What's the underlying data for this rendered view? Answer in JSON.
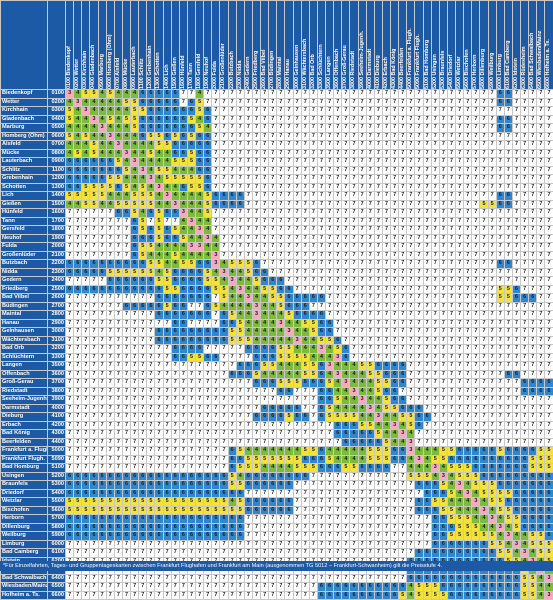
{
  "footnote": "*Für Einzelfahrten, Tages- und Gruppentageskarten zwischen Frankfurt Flughafen und Frankfurt am Main (ausgenommen TG 5012 – Frankfurt-Schwanheim) gilt die Preisstufe 4.",
  "colors": {
    "header": "#1d5aa6",
    "level_1": "#e8413c",
    "level_2": "#f4a6a0",
    "level_3": "#f7a9c0",
    "level_4": "#7dbb3b",
    "level_5": "#f3e23a",
    "level_6": "#2f86d1",
    "level_7": "#ffffff"
  },
  "columns": [
    {
      "code": "0100",
      "name": "Biedenkopf"
    },
    {
      "code": "0200",
      "name": "Wetter"
    },
    {
      "code": "0300",
      "name": "Kirchhain"
    },
    {
      "code": "0400",
      "name": "Gladenbach"
    },
    {
      "code": "0500",
      "name": "Marburg"
    },
    {
      "code": "0600",
      "name": "Homberg (Ohm)"
    },
    {
      "code": "0700",
      "name": "Alsfeld"
    },
    {
      "code": "0800",
      "name": "Mücke"
    },
    {
      "code": "0900",
      "name": "Lauterbach"
    },
    {
      "code": "1100",
      "name": "Schlitz"
    },
    {
      "code": "1200",
      "name": "Grebenhain"
    },
    {
      "code": "1300",
      "name": "Schotten"
    },
    {
      "code": "1400",
      "name": "Lich"
    },
    {
      "code": "1500",
      "name": "Gießen"
    },
    {
      "code": "1600",
      "name": "Hünfeld"
    },
    {
      "code": "1700",
      "name": "Tann"
    },
    {
      "code": "1800",
      "name": "Gersfeld"
    },
    {
      "code": "1900",
      "name": "Neuhof"
    },
    {
      "code": "2000",
      "name": "Fulda"
    },
    {
      "code": "2100",
      "name": "Großenlüder"
    },
    {
      "code": "2200",
      "name": "Butzbach"
    },
    {
      "code": "2300",
      "name": "Nidda"
    },
    {
      "code": "2400",
      "name": "Gedern"
    },
    {
      "code": "2500",
      "name": "Friedberg"
    },
    {
      "code": "2600",
      "name": "Bad Vilbel"
    },
    {
      "code": "2700",
      "name": "Büdingen"
    },
    {
      "code": "2800",
      "name": "Maintal"
    },
    {
      "code": "2900",
      "name": "Hanau"
    },
    {
      "code": "3000",
      "name": "Gelnhausen"
    },
    {
      "code": "3100",
      "name": "Wächtersbach"
    },
    {
      "code": "3200",
      "name": "Bad Orb"
    },
    {
      "code": "3300",
      "name": "Schlüchtern"
    },
    {
      "code": "3500",
      "name": "Langen"
    },
    {
      "code": "3600",
      "name": "Offenbach"
    },
    {
      "code": "3700",
      "name": "Groß-Gerau"
    },
    {
      "code": "3800",
      "name": "Riedstadt"
    },
    {
      "code": "3900",
      "name": "Seeheim-Jugenh."
    },
    {
      "code": "4000",
      "name": "Darmstadt"
    },
    {
      "code": "4100",
      "name": "Dieburg"
    },
    {
      "code": "4200",
      "name": "Erbach"
    },
    {
      "code": "4300",
      "name": "Bad König"
    },
    {
      "code": "4400",
      "name": "Beerfelden"
    },
    {
      "code": "5000",
      "name": "Frankfurt a. Flugh."
    },
    {
      "code": "5090",
      "name": "Frankfurt Flugh."
    },
    {
      "code": "5100",
      "name": "Bad Homburg"
    },
    {
      "code": "5200",
      "name": "Usingen"
    },
    {
      "code": "5300",
      "name": "Braunfels"
    },
    {
      "code": "5400",
      "name": "Driedorf"
    },
    {
      "code": "5500",
      "name": "Wetzlar"
    },
    {
      "code": "5600",
      "name": "Bischofen"
    },
    {
      "code": "5700",
      "name": "Herborn"
    },
    {
      "code": "5800",
      "name": "Dillenburg"
    },
    {
      "code": "5900",
      "name": "Weilburg"
    },
    {
      "code": "6000",
      "name": "Limburg"
    },
    {
      "code": "6100",
      "name": "Bad Camberg"
    },
    {
      "code": "6200",
      "name": "Idstein"
    },
    {
      "code": "6300",
      "name": "Rüdesheim"
    },
    {
      "code": "6400",
      "name": "Bad Schwalbach"
    },
    {
      "code": "6500",
      "name": "Wiesbaden/Mainz"
    },
    {
      "code": "6600",
      "name": "Hofheim a. Ts."
    }
  ],
  "rows": [
    {
      "name": "Biedenkopf",
      "code": "0100",
      "cells": "3455454446666677477777777777777777777777777777777777766777777"
    },
    {
      "name": "Wetter",
      "code": "0200",
      "cells": "4344444556666676577777777777777777777777777777777777766777777"
    },
    {
      "name": "Kirchhain",
      "code": "0300",
      "cells": "5434444455666666567777777777777777777777777777777777777777777"
    },
    {
      "name": "Gladenbach",
      "code": "0400",
      "cells": "5443454556666665467777777777777777777777777777777777766777777"
    },
    {
      "name": "Marburg",
      "code": "0500",
      "cells": "4444344456666666547777777777777777777777777777777777766777777"
    },
    {
      "name": "Homberg (Ohm)",
      "code": "0600",
      "cells": "5454434446556565667777777777777777777777777777777777777777777"
    },
    {
      "name": "Alsfeld",
      "code": "0700",
      "cells": "4445443444455666667777777777777777777777777777777777777777777"
    },
    {
      "name": "Mücke",
      "code": "0800",
      "cells": "4545444344544665667777777777777777777777777777777777777777777"
    },
    {
      "name": "Lauterbach",
      "code": "0900",
      "cells": "6666665434444555667777777777777777777777777777777777777777777"
    },
    {
      "name": "Schlitz",
      "code": "1100",
      "cells": "6666666543455444667777777777777777777777777777777777777777777"
    },
    {
      "name": "Grebenhain",
      "code": "1200",
      "cells": "6666655444345555567777777777777777777777777777777777777777777"
    },
    {
      "name": "Schotten",
      "code": "1300",
      "cells": "6655556545434465567777777777777777777777777777777777777777777"
    },
    {
      "name": "Lich",
      "code": "1400",
      "cells": "5555544455543444456666777777777777777777777777777777766777777"
    },
    {
      "name": "Gießen",
      "code": "1500",
      "cells": "4455445555544344456666777777777777777777777777777775566777777"
    },
    {
      "name": "Hünfeld",
      "code": "1600",
      "cells": "7777776654656634457777777777777777777777777777777777777777777"
    },
    {
      "name": "Tann",
      "code": "1700",
      "cells": "7777777765757743447777777777777777777777777777777777777777777"
    },
    {
      "name": "Gersfeld",
      "code": "1800",
      "cells": "7777777765656544347777777777777777777777777777777777777777777"
    },
    {
      "name": "Neuhof",
      "code": "1900",
      "cells": "7777777766656654434777777777777777777777777777777777777777777"
    },
    {
      "name": "Fulda",
      "code": "2000",
      "cells": "7777777765544443344777777777777777777777777777777777777777777"
    },
    {
      "name": "Großenlüder",
      "code": "2100",
      "cells": "7777777765444544443777777777777777777777777777777777777777777"
    },
    {
      "name": "Butzbach",
      "code": "2200",
      "cells": "6666666666554455663455567777777777777777777777777777766777777"
    },
    {
      "name": "Nidda",
      "code": "2300",
      "cells": "6666655555545666654344566777777777777777777777777777777777777"
    },
    {
      "name": "Gedern",
      "code": "2400",
      "cells": "7777766666655666655434456667777777777777777777777777777777777"
    },
    {
      "name": "Friedberg",
      "code": "2500",
      "cells": "6666666666665566665543445566777777777777777777777777755677777"
    },
    {
      "name": "Bad Vilbel",
      "code": "2600",
      "cells": "7777777777766666667544344556666677777777777777777777755666777"
    },
    {
      "name": "Büdingen",
      "code": "2700",
      "cells": "7777777666665667765444434456667777777777777777777777777777777"
    },
    {
      "name": "Maintal",
      "code": "2800",
      "cells": "7777777777766666667654434445666677777777777777777777777777777"
    },
    {
      "name": "Hanau",
      "code": "2900",
      "cells": "7777777777777667777665444434455667777777777777777777777777777"
    },
    {
      "name": "Gelnhausen",
      "code": "3000",
      "cells": "7777777777766666666655444443445667777777777777777777777777777"
    },
    {
      "name": "Wächtersbach",
      "code": "3100",
      "cells": "7777777777766666666655544444344556777777777777777777777777777"
    },
    {
      "name": "Bad Orb",
      "code": "3200",
      "cells": "7777777777777666677777666655444345677777777777777777777777777"
    },
    {
      "name": "Schlüchtern",
      "code": "3300",
      "cells": "7777777777777665566777766655554443677777777777777777777777777"
    },
    {
      "name": "Langen",
      "code": "3500",
      "cells": "7777777777777777777776665544455634445566667777777777777777777"
    },
    {
      "name": "Offenbach",
      "code": "3600",
      "cells": "7777777777777777777766654444455643444556667777777777776677777"
    },
    {
      "name": "Groß-Gerau",
      "code": "3700",
      "cells": "7777777777777777777777766655566654344455667777777777777766667"
    },
    {
      "name": "Riedstadt",
      "code": "3800",
      "cells": "7777777777777777777777777766777664434456677777777777777766667"
    },
    {
      "name": "Seeheim-Jugenh.",
      "code": "3900",
      "cells": "7777777777777777777777777777777665443445667777777777777777777"
    },
    {
      "name": "Darmstadt",
      "code": "4000",
      "cells": "7777777777777777777777776666677654444345566677777777777777777"
    },
    {
      "name": "Dieburg",
      "code": "4100",
      "cells": "7777777777777777777777766665667655554434455667777777777777777"
    },
    {
      "name": "Erbach",
      "code": "4200",
      "cells": "7777777777777777777777777777777776665544345677777777777777777"
    },
    {
      "name": "Bad König",
      "code": "4300",
      "cells": "7777777777777777777777777777777776666654434777777777777777777"
    },
    {
      "name": "Beerfelden",
      "code": "4400",
      "cells": "7777777777777777777777777777777777666665443777777777777777777"
    },
    {
      "name": "Frankfurt a. Flugh.",
      "code": "5000",
      "cells": "7777777777777777777765444444455644444555663444556666656666556"
    },
    {
      "name": "Frankfurt Flugh.",
      "code": "5090",
      "cells": "7777777777777777777766555555566654444555664345566666666665555"
    },
    {
      "name": "Bad Homburg",
      "code": "5100",
      "cells": "7777777777777777777765554444555666556666774443455566666665555"
    },
    {
      "name": "Usingen",
      "code": "5200",
      "cells": "6666666666666666666654666666667777777777775554345556666666666"
    },
    {
      "name": "Braunfels",
      "code": "5300",
      "cells": "6666666666666666666655666666777777777777777666543455566666666"
    },
    {
      "name": "Driedorf",
      "code": "5400",
      "cells": "6666666666666666666666777777777777777777777766654345555666666"
    },
    {
      "name": "Wetzlar",
      "code": "5500",
      "cells": "5555555555555555555545666666777777777777777665544434556666666"
    },
    {
      "name": "Bischofen",
      "code": "5600",
      "cells": "5555555555555555555555666666777777777777777666554443455666666"
    },
    {
      "name": "Herborn",
      "code": "5700",
      "cells": "6666666666666666666666777777777777777777777776655544345566666"
    },
    {
      "name": "Dillenburg",
      "code": "5800",
      "cells": "6666666666666666666666777777777777777777777776665554434566666"
    },
    {
      "name": "Weilburg",
      "code": "5900",
      "cells": "6666666666666666666666777777777777777777777776655555543445566"
    },
    {
      "name": "Limburg",
      "code": "6000",
      "cells": "7777777777777777777777777777777777777777777776666666554345556"
    },
    {
      "name": "Bad Camberg",
      "code": "6100",
      "cells": "7777777777777777777777777777777777777777777666666666655434556"
    },
    {
      "name": "Idstein",
      "code": "6200",
      "cells": "7777777777777777777777777777777777777777776666666666665543455"
    },
    {
      "name": "Rüdesheim",
      "code": "6300",
      "cells": "7777777777777777777777777777777777777777776666666666666654344"
    },
    {
      "name": "Bad Schwalbach",
      "code": "6400",
      "cells": "7777777777777777777777777777777777777777776666666666666655434"
    },
    {
      "name": "Wiesbaden/Mainz",
      "code": "6500",
      "cells": "7777777777777777777777777777777666666666664555666666666655443"
    },
    {
      "name": "Hofheim a. Ts.",
      "code": "6600",
      "cells": "7777777777777777777777777777777666666666654555566666666655434"
    }
  ]
}
